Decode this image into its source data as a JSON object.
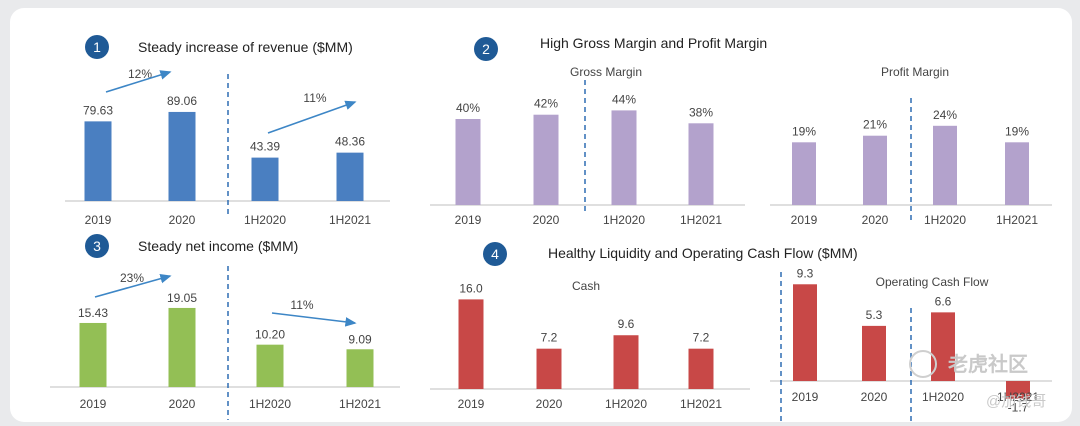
{
  "colors": {
    "badge": "#1f5a96",
    "revenue": "#4a7fc1",
    "margin": "#b3a2cc",
    "net_income": "#93bf55",
    "cash": "#c84847",
    "arrow": "#3d86c6",
    "divider": "#2e6db4",
    "axis": "#bfbfbf",
    "text": "#444444",
    "title": "#222222"
  },
  "watermark": {
    "brand": "老虎社区",
    "handle": "@加钱哥"
  },
  "chart_data": [
    {
      "id": "revenue",
      "type": "bar",
      "badge": "1",
      "title": "Steady increase of revenue ($MM)",
      "categories": [
        "2019",
        "2020",
        "1H2020",
        "1H2021"
      ],
      "values": [
        79.63,
        89.06,
        43.39,
        48.36
      ],
      "labels": [
        "79.63",
        "89.06",
        "43.39",
        "48.36"
      ],
      "growth": [
        "12%",
        "11%"
      ],
      "color": "revenue"
    },
    {
      "id": "margins",
      "badge": "2",
      "title": "High Gross Margin and Profit Margin",
      "charts": [
        {
          "id": "gross",
          "type": "bar",
          "subtitle": "Gross Margin",
          "categories": [
            "2019",
            "2020",
            "1H2020",
            "1H2021"
          ],
          "values": [
            40,
            42,
            44,
            38
          ],
          "labels": [
            "40%",
            "42%",
            "44%",
            "38%"
          ],
          "color": "margin"
        },
        {
          "id": "profit",
          "type": "bar",
          "subtitle": "Profit Margin",
          "categories": [
            "2019",
            "2020",
            "1H2020",
            "1H2021"
          ],
          "values": [
            19,
            21,
            24,
            19
          ],
          "labels": [
            "19%",
            "21%",
            "24%",
            "19%"
          ],
          "color": "margin"
        }
      ]
    },
    {
      "id": "net_income",
      "type": "bar",
      "badge": "3",
      "title": "Steady net income ($MM)",
      "categories": [
        "2019",
        "2020",
        "1H2020",
        "1H2021"
      ],
      "values": [
        15.43,
        19.05,
        10.2,
        9.09
      ],
      "labels": [
        "15.43",
        "19.05",
        "10.20",
        "9.09"
      ],
      "growth": [
        "23%",
        "11%"
      ],
      "color": "net_income"
    },
    {
      "id": "liquidity",
      "badge": "4",
      "title": "Healthy Liquidity and Operating Cash Flow ($MM)",
      "charts": [
        {
          "id": "cash",
          "type": "bar",
          "subtitle": "Cash",
          "categories": [
            "2019",
            "2020",
            "1H2020",
            "1H2021"
          ],
          "values": [
            16.0,
            7.2,
            9.6,
            7.2
          ],
          "labels": [
            "16.0",
            "7.2",
            "9.6",
            "7.2"
          ],
          "color": "cash"
        },
        {
          "id": "ocf",
          "type": "bar",
          "subtitle": "Operating Cash Flow",
          "categories": [
            "2019",
            "2020",
            "1H2020",
            "1H2021"
          ],
          "values": [
            9.3,
            5.3,
            6.6,
            -1.7
          ],
          "labels": [
            "9.3",
            "5.3",
            "6.6",
            "-1.7"
          ],
          "color": "cash"
        }
      ]
    }
  ]
}
